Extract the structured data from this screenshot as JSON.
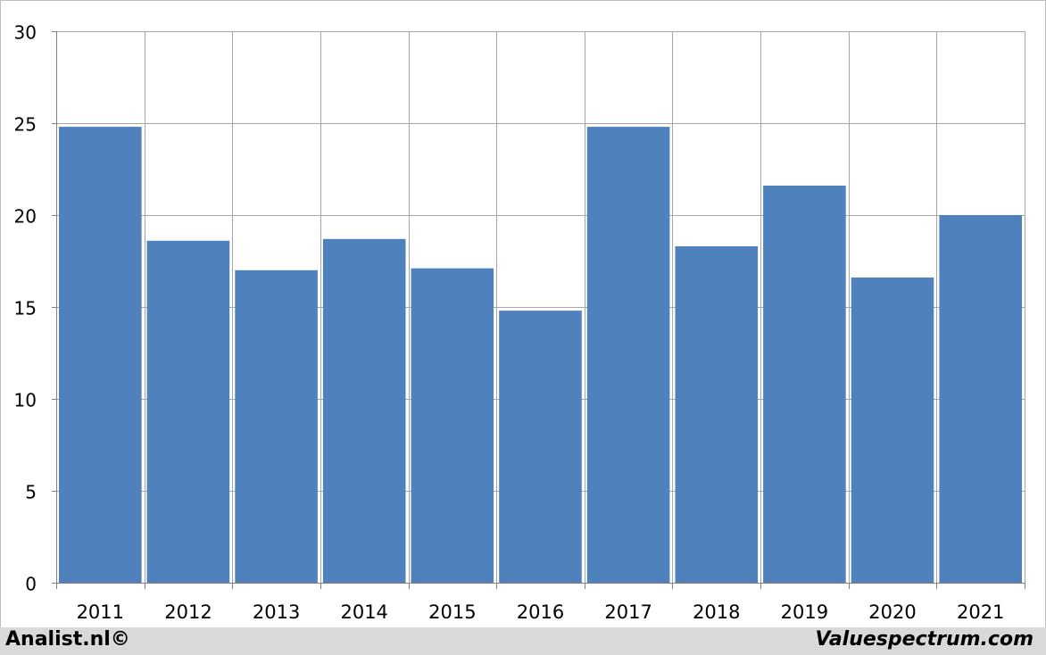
{
  "chart_data": {
    "type": "bar",
    "categories": [
      "2011",
      "2012",
      "2013",
      "2014",
      "2015",
      "2016",
      "2017",
      "2018",
      "2019",
      "2020",
      "2021"
    ],
    "values": [
      24.8,
      18.6,
      17.0,
      18.7,
      17.1,
      14.8,
      24.8,
      18.3,
      21.6,
      16.6,
      20.0
    ],
    "ylim": [
      0,
      30
    ],
    "yticks": [
      "0",
      "5",
      "10",
      "15",
      "20",
      "25",
      "30"
    ],
    "title": "",
    "xlabel": "",
    "ylabel": "",
    "grid": true,
    "colors": {
      "bar": "#4f81bd",
      "grid": "#a6a6a6",
      "axis": "#808080"
    }
  },
  "footer": {
    "left_text": "Analist.nl©",
    "right_text": "Valuespectrum.com"
  }
}
